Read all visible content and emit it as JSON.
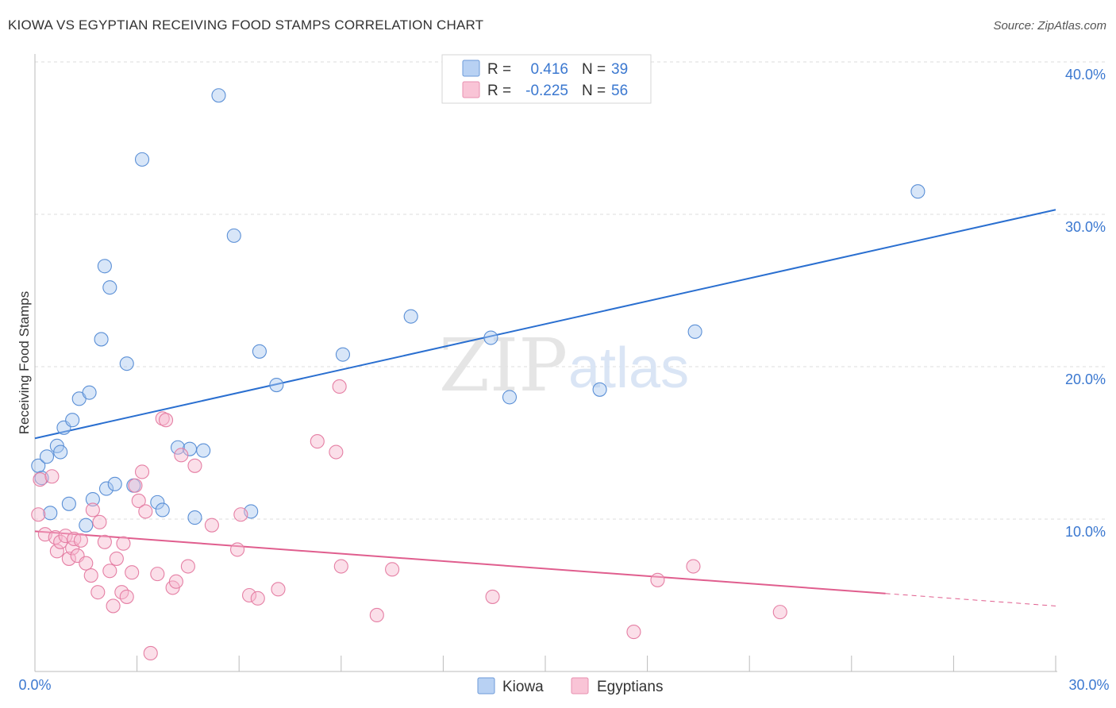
{
  "chart_data": {
    "type": "scatter",
    "title": "KIOWA VS EGYPTIAN RECEIVING FOOD STAMPS CORRELATION CHART",
    "source": "Source: ZipAtlas.com",
    "xlabel": "",
    "ylabel": "Receiving Food Stamps",
    "xlim": [
      0,
      30
    ],
    "ylim": [
      0,
      40
    ],
    "x_tick_labels": [
      "0.0%",
      "30.0%"
    ],
    "y_tick_labels": [
      "10.0%",
      "20.0%",
      "30.0%",
      "40.0%"
    ],
    "y_ticks": [
      10,
      20,
      30,
      40
    ],
    "watermark": {
      "zip": "ZIP",
      "atlas": "atlas"
    },
    "legend": {
      "r_label": "R =",
      "n_label": "N =",
      "entries": [
        {
          "r": "0.416",
          "n": "39"
        },
        {
          "r": "-0.225",
          "n": "56"
        }
      ]
    },
    "series": [
      {
        "name": "Kiowa",
        "color": "#a9c8f0",
        "edge": "#5a8fd6",
        "line_color": "#2a6fd0",
        "trend": {
          "x0": 0,
          "y0": 15.3,
          "x1": 30,
          "y1": 30.3,
          "dashed_from": null
        },
        "points": [
          [
            0.1,
            13.5
          ],
          [
            0.2,
            12.7
          ],
          [
            0.35,
            14.1
          ],
          [
            0.45,
            10.4
          ],
          [
            0.65,
            14.8
          ],
          [
            0.75,
            14.4
          ],
          [
            0.85,
            16.0
          ],
          [
            1.0,
            11.0
          ],
          [
            1.1,
            16.5
          ],
          [
            1.3,
            17.9
          ],
          [
            1.5,
            9.6
          ],
          [
            1.6,
            18.3
          ],
          [
            1.7,
            11.3
          ],
          [
            1.95,
            21.8
          ],
          [
            2.05,
            26.6
          ],
          [
            2.1,
            12.0
          ],
          [
            2.2,
            25.2
          ],
          [
            2.35,
            12.3
          ],
          [
            2.7,
            20.2
          ],
          [
            2.9,
            12.2
          ],
          [
            3.15,
            33.6
          ],
          [
            3.6,
            11.1
          ],
          [
            3.75,
            10.6
          ],
          [
            4.2,
            14.7
          ],
          [
            4.55,
            14.6
          ],
          [
            4.7,
            10.1
          ],
          [
            4.95,
            14.5
          ],
          [
            5.4,
            37.8
          ],
          [
            5.85,
            28.6
          ],
          [
            6.35,
            10.5
          ],
          [
            6.6,
            21.0
          ],
          [
            7.1,
            18.8
          ],
          [
            9.05,
            20.8
          ],
          [
            11.05,
            23.3
          ],
          [
            13.4,
            21.9
          ],
          [
            13.95,
            18.0
          ],
          [
            16.6,
            18.5
          ],
          [
            19.4,
            22.3
          ],
          [
            25.95,
            31.5
          ]
        ]
      },
      {
        "name": "Egyptians",
        "color": "#f6b9cf",
        "edge": "#e57fa4",
        "line_color": "#e05e8e",
        "trend": {
          "x0": 0,
          "y0": 9.2,
          "x1": 30,
          "y1": 4.3,
          "dashed_from": 25.0
        },
        "points": [
          [
            0.1,
            10.3
          ],
          [
            0.15,
            12.6
          ],
          [
            0.3,
            9.0
          ],
          [
            0.5,
            12.8
          ],
          [
            0.6,
            8.8
          ],
          [
            0.65,
            7.9
          ],
          [
            0.75,
            8.5
          ],
          [
            0.9,
            8.9
          ],
          [
            1.0,
            7.4
          ],
          [
            1.1,
            8.1
          ],
          [
            1.15,
            8.7
          ],
          [
            1.25,
            7.6
          ],
          [
            1.35,
            8.6
          ],
          [
            1.5,
            7.1
          ],
          [
            1.65,
            6.3
          ],
          [
            1.7,
            10.6
          ],
          [
            1.85,
            5.2
          ],
          [
            1.9,
            9.8
          ],
          [
            2.05,
            8.5
          ],
          [
            2.2,
            6.6
          ],
          [
            2.3,
            4.3
          ],
          [
            2.4,
            7.4
          ],
          [
            2.55,
            5.2
          ],
          [
            2.6,
            8.4
          ],
          [
            2.7,
            4.9
          ],
          [
            2.85,
            6.5
          ],
          [
            2.95,
            12.2
          ],
          [
            3.05,
            11.2
          ],
          [
            3.15,
            13.1
          ],
          [
            3.25,
            10.5
          ],
          [
            3.4,
            1.2
          ],
          [
            3.6,
            6.4
          ],
          [
            3.75,
            16.6
          ],
          [
            3.85,
            16.5
          ],
          [
            4.05,
            5.5
          ],
          [
            4.15,
            5.9
          ],
          [
            4.3,
            14.2
          ],
          [
            4.5,
            6.9
          ],
          [
            4.7,
            13.5
          ],
          [
            5.2,
            9.6
          ],
          [
            5.95,
            8.0
          ],
          [
            6.05,
            10.3
          ],
          [
            6.3,
            5.0
          ],
          [
            6.55,
            4.8
          ],
          [
            7.15,
            5.4
          ],
          [
            8.3,
            15.1
          ],
          [
            8.85,
            14.4
          ],
          [
            8.95,
            18.7
          ],
          [
            9.0,
            6.9
          ],
          [
            10.05,
            3.7
          ],
          [
            10.5,
            6.7
          ],
          [
            13.45,
            4.9
          ],
          [
            17.6,
            2.6
          ],
          [
            18.3,
            6.0
          ],
          [
            19.35,
            6.9
          ],
          [
            21.9,
            3.9
          ]
        ]
      }
    ]
  }
}
